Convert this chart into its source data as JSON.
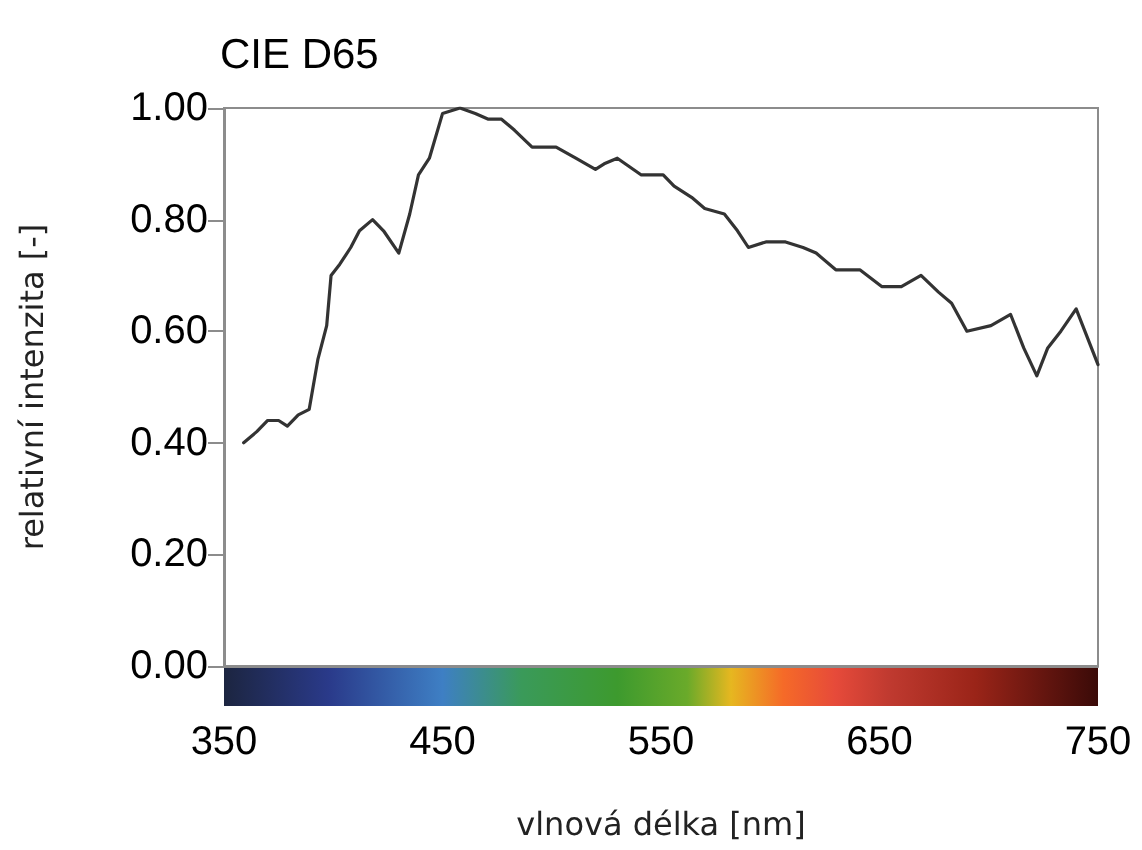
{
  "chart_data": {
    "type": "line",
    "title": "CIE D65",
    "xlabel": "vlnová délka [nm]",
    "ylabel": "relativní intenzita [-]",
    "series": [
      {
        "color": "#333333",
        "x": [
          359,
          365,
          370,
          375,
          379,
          384,
          389,
          393,
          397,
          399,
          403,
          408,
          412,
          418,
          423,
          430,
          435,
          439,
          444,
          450,
          458,
          465,
          471,
          477,
          483,
          491,
          502,
          511,
          520,
          524,
          530,
          541,
          551,
          556,
          564,
          570,
          579,
          585,
          590,
          598,
          607,
          615,
          621,
          630,
          641,
          651,
          660,
          669,
          677,
          683,
          690,
          701,
          710,
          716,
          722,
          727,
          733,
          740,
          743,
          750
        ],
        "values": [
          0.4,
          0.42,
          0.44,
          0.44,
          0.43,
          0.45,
          0.46,
          0.55,
          0.61,
          0.7,
          0.72,
          0.75,
          0.78,
          0.8,
          0.78,
          0.74,
          0.81,
          0.88,
          0.91,
          0.99,
          1.0,
          0.99,
          0.98,
          0.98,
          0.96,
          0.93,
          0.93,
          0.91,
          0.89,
          0.9,
          0.91,
          0.88,
          0.88,
          0.86,
          0.84,
          0.82,
          0.81,
          0.78,
          0.75,
          0.76,
          0.76,
          0.75,
          0.74,
          0.71,
          0.71,
          0.68,
          0.68,
          0.7,
          0.67,
          0.65,
          0.6,
          0.61,
          0.63,
          0.57,
          0.52,
          0.57,
          0.6,
          0.64,
          0.61,
          0.54
        ]
      }
    ],
    "xlim": [
      350,
      750
    ],
    "xticks": [
      350,
      450,
      550,
      650,
      750
    ],
    "ylim": [
      0,
      1
    ],
    "yticks": [
      {
        "value": 0,
        "label": "0.00"
      },
      {
        "value": 0.2,
        "label": "0.20"
      },
      {
        "value": 0.4,
        "label": "0.40"
      },
      {
        "value": 0.6,
        "label": "0.60"
      },
      {
        "value": 0.8,
        "label": "0.80"
      },
      {
        "value": 1,
        "label": "1.00"
      }
    ],
    "grid": false,
    "marker": "none",
    "line_style": "solid"
  }
}
